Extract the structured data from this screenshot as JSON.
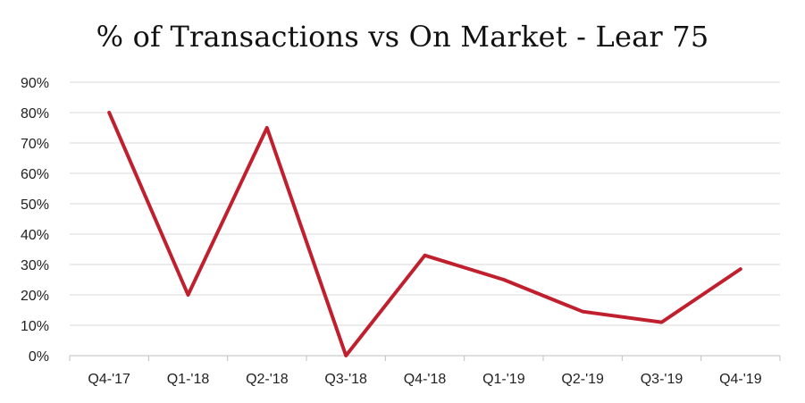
{
  "chart_data": {
    "type": "line",
    "title": "% of Transactions vs On Market - Lear 75",
    "xlabel": "",
    "ylabel": "",
    "categories": [
      "Q4-'17",
      "Q1-'18",
      "Q2-'18",
      "Q3-'18",
      "Q4-'18",
      "Q1-'19",
      "Q2-'19",
      "Q3-'19",
      "Q4-'19"
    ],
    "series": [
      {
        "values": [
          80,
          20,
          75,
          0,
          33,
          25,
          14.5,
          11,
          28.5
        ]
      }
    ],
    "ylim": [
      0,
      90
    ],
    "yticks": [
      0,
      10,
      20,
      30,
      40,
      50,
      60,
      70,
      80,
      90
    ],
    "ytick_labels": [
      "0%",
      "10%",
      "20%",
      "30%",
      "40%",
      "50%",
      "60%",
      "70%",
      "80%",
      "90%"
    ],
    "grid": "horizontal",
    "legend": "none",
    "colors": {
      "line": "#C0202E",
      "grid": "#D9D9D9",
      "axis": "#BFBFBF"
    }
  }
}
